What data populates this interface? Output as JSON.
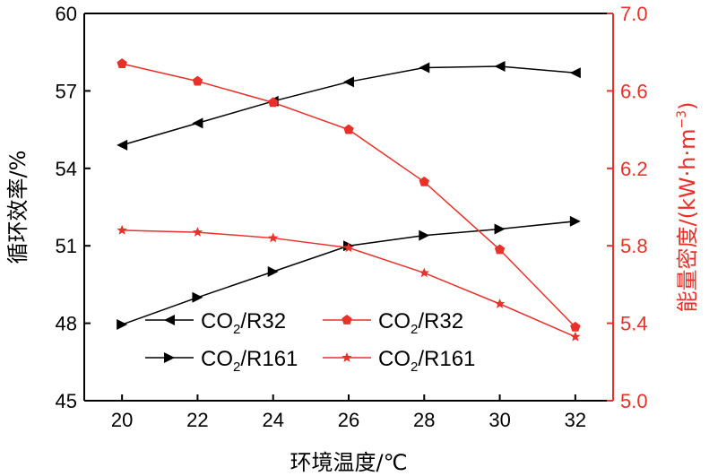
{
  "chart_data": {
    "type": "line",
    "x": [
      20,
      22,
      24,
      26,
      28,
      30,
      32
    ],
    "x_ticks": [
      "20",
      "22",
      "24",
      "26",
      "28",
      "30",
      "32"
    ],
    "xlim": [
      19,
      33
    ],
    "xlabel": "环境温度/℃",
    "y_left": {
      "label": "循环效率/%",
      "ylim": [
        45,
        60
      ],
      "ticks": [
        "45",
        "48",
        "51",
        "54",
        "57",
        "60"
      ],
      "color": "#000000"
    },
    "y_right": {
      "label_prefix": "能量密度/(kW·h·m",
      "label_sup": "−3",
      "label_suffix": ")",
      "ylim": [
        5.0,
        7.0
      ],
      "ticks": [
        "5.0",
        "5.4",
        "5.8",
        "6.2",
        "6.6",
        "7.0"
      ],
      "color": "#e8312a"
    },
    "series": [
      {
        "name": "CO2/R32",
        "legend_main": "CO",
        "legend_sub": "2",
        "legend_tail": "/R32",
        "axis": "left",
        "marker": "triangle-left",
        "color": "#000000",
        "values": [
          54.9,
          55.75,
          56.6,
          57.35,
          57.9,
          57.95,
          57.7
        ]
      },
      {
        "name": "CO2/R161",
        "legend_main": "CO",
        "legend_sub": "2",
        "legend_tail": "/R161",
        "axis": "left",
        "marker": "triangle-right",
        "color": "#000000",
        "values": [
          47.95,
          49.0,
          50.0,
          51.0,
          51.4,
          51.65,
          51.95
        ]
      },
      {
        "name": "CO2/R32",
        "legend_main": "CO",
        "legend_sub": "2",
        "legend_tail": "/R32",
        "axis": "right",
        "marker": "pentagon",
        "color": "#e8312a",
        "values": [
          6.74,
          6.65,
          6.54,
          6.4,
          6.13,
          5.78,
          5.38
        ]
      },
      {
        "name": "CO2/R161",
        "legend_main": "CO",
        "legend_sub": "2",
        "legend_tail": "/R161",
        "axis": "right",
        "marker": "star",
        "color": "#e8312a",
        "values": [
          5.88,
          5.87,
          5.84,
          5.79,
          5.66,
          5.5,
          5.33
        ]
      }
    ],
    "legend_placement": "bottom-left",
    "grid": false
  }
}
